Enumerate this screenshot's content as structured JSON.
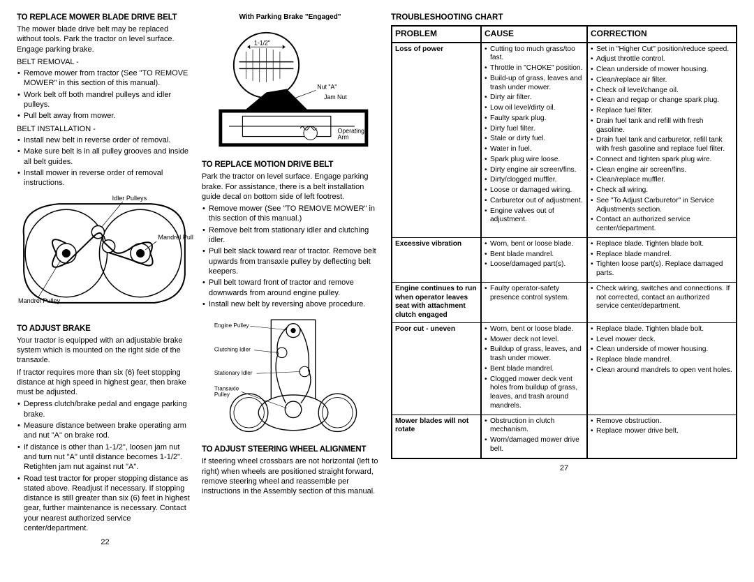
{
  "leftCol": {
    "h1": "To Replace Mower Blade Drive Belt",
    "p1": "The mower blade drive belt may be replaced without tools. Park the tractor on level surface. Engage parking brake.",
    "beltRemoval": "BELT REMOVAL -",
    "removalItems": [
      "Remove mower from tractor (See \"TO REMOVE MOWER\" in this section of this manual).",
      "Work belt off both mandrel pulleys and idler pulleys.",
      "Pull belt away from mower."
    ],
    "beltInstall": "BELT INSTALLATION -",
    "installItems": [
      "Install new belt in reverse order of removal.",
      "Make sure belt is in all pulley grooves and inside all belt guides.",
      "Install mower in reverse order of removal instructions."
    ],
    "fig1_idler": "Idler Pulleys",
    "fig1_mandrel1": "Mandrel\nPulley",
    "fig1_mandrel2": "Mandrel\nPulley",
    "h2": "To Adjust Brake",
    "p2": "Your tractor is equipped with an adjustable brake system which is mounted on the right side of the transaxle.",
    "p3": "If tractor requires more than six (6) feet stopping distance at high speed in highest gear, then brake must be adjusted.",
    "brakeItems": [
      "Depress clutch/brake pedal and engage parking brake.",
      "Measure distance between brake operating arm and nut \"A\" on brake rod.",
      "If distance is other than 1-1/2\", loosen jam nut and turn nut \"A\" until distance becomes 1-1/2\". Retighten jam nut against nut \"A\".",
      "Road test tractor for proper stopping distance as stated above. Readjust if necessary. If stopping distance is still greater than six (6) feet in highest gear, further maintenance is necessary. Contact your nearest authorized service center/department."
    ],
    "pagenum": "22"
  },
  "midCol": {
    "figTitle": "With Parking Brake \"Engaged\"",
    "dim": "1-1/2\"",
    "nutA": "Nut \"A\"",
    "jamNut": "Jam Nut",
    "opArm": "Operating\nArm",
    "h1": "To Replace Motion Drive Belt",
    "p1": "Park the tractor on level surface. Engage parking brake. For assistance, there is a belt installation guide decal on bottom side of left footrest.",
    "motionItems": [
      "Remove mower (See \"TO REMOVE MOWER\" in this section of this manual.)",
      "Remove belt from stationary idler and clutching idler.",
      "Pull belt slack toward rear of tractor. Remove belt upwards from transaxle pulley by deflecting belt keepers.",
      "Pull belt toward front of tractor and remove downwards from around engine pulley.",
      "Install new belt by reversing above procedure."
    ],
    "engPulley": "Engine Pulley",
    "clutchIdler": "Clutching Idler",
    "statIdler": "Stationary Idler",
    "transPulley": "Transaxle\nPulley",
    "h2": "To Adjust Steering Wheel Alignment",
    "p2": "If steering wheel crossbars are not horizontal (left to right) when wheels are positioned straight forward, remove steering wheel and reassemble per instructions in the Assembly section of this manual."
  },
  "chart": {
    "title": "Troubleshooting Chart",
    "headers": [
      "PROBLEM",
      "CAUSE",
      "CORRECTION"
    ],
    "rows": [
      {
        "problem": "Loss of power",
        "causes": [
          "Cutting too much grass/too fast.",
          "Throttle in \"CHOKE\" position.",
          "Build-up of grass, leaves and trash under mower.",
          "Dirty air filter.",
          "Low oil level/dirty oil.",
          "Faulty spark plug.",
          "Dirty fuel filter.",
          "Stale or dirty fuel.",
          "Water in fuel.",
          "Spark plug wire loose.",
          "Dirty engine air screen/fins.",
          "Dirty/clogged muffler.",
          "Loose or damaged wiring.",
          "Carburetor out of adjustment.",
          "Engine valves out of adjustment."
        ],
        "corrections": [
          "Set in \"Higher Cut\" position/reduce speed.",
          "Adjust throttle control.",
          "Clean underside of mower housing.",
          "Clean/replace air filter.",
          "Check oil level/change oil.",
          "Clean and regap or change spark plug.",
          "Replace fuel filter.",
          "Drain fuel tank and refill with fresh gasoline.",
          "Drain fuel tank and carburetor, refill tank with fresh gasoline and replace fuel filter.",
          "Connect and tighten spark plug wire.",
          "Clean engine air screen/fins.",
          "Clean/replace muffler.",
          "Check all wiring.",
          "See \"To Adjust Carburetor\" in Service Adjustments section.",
          "Contact an authorized service center/department."
        ]
      },
      {
        "problem": "Excessive vibration",
        "causes": [
          "Worn, bent or loose blade.",
          "Bent blade mandrel.",
          "Loose/damaged part(s)."
        ],
        "corrections": [
          "Replace blade. Tighten blade bolt.",
          "Replace blade mandrel.",
          "Tighten loose part(s). Replace damaged parts."
        ]
      },
      {
        "problem": "Engine continues to run when operator leaves seat with attachment clutch engaged",
        "causes": [
          "Faulty operator-safety presence control system."
        ],
        "corrections": [
          "Check wiring, switches and connections. If not corrected, contact an authorized service center/department."
        ]
      },
      {
        "problem": "Poor cut - uneven",
        "causes": [
          "Worn, bent or loose blade.",
          "Mower deck not level.",
          "Buildup of grass, leaves, and trash under mower.",
          "Bent blade mandrel.",
          "Clogged mower deck vent holes from buildup of grass, leaves, and trash around mandrels."
        ],
        "corrections": [
          "Replace blade. Tighten blade bolt.",
          "Level mower deck.",
          "Clean underside of mower housing.",
          "Replace blade mandrel.",
          "Clean around mandrels to open vent holes."
        ]
      },
      {
        "problem": "Mower blades will not rotate",
        "causes": [
          "Obstruction in clutch mechanism.",
          "Worn/damaged mower drive belt."
        ],
        "corrections": [
          "Remove obstruction.",
          "Replace mower drive belt."
        ]
      }
    ],
    "pagenum": "27"
  }
}
